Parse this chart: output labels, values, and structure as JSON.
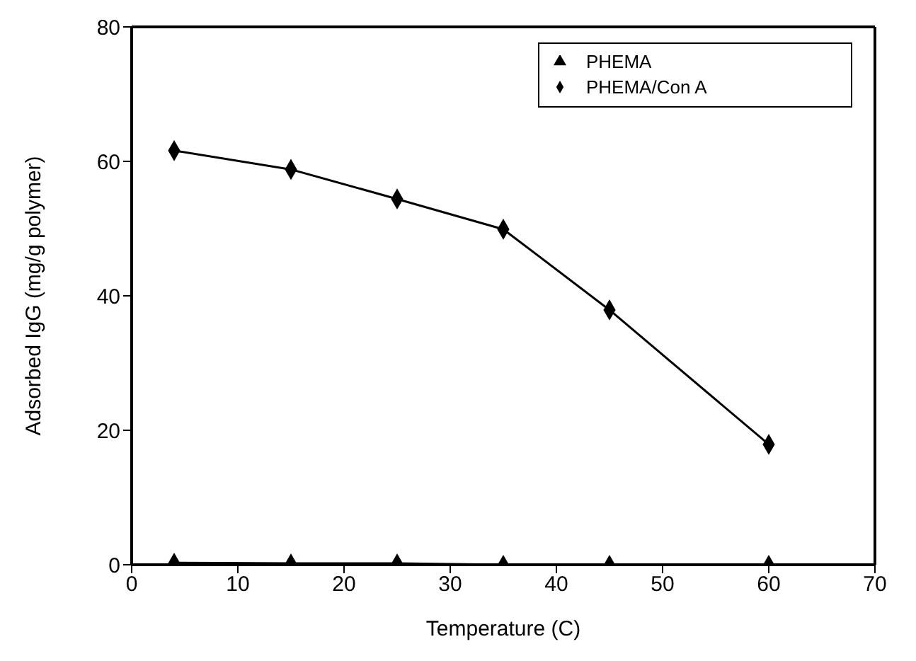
{
  "chart_data": {
    "type": "line",
    "xlabel": "Temperature (C)",
    "ylabel": "Adsorbed IgG (mg/g polymer)",
    "x": [
      4,
      15,
      25,
      35,
      45,
      60
    ],
    "series": [
      {
        "name": "PHEMA",
        "color": "#000000",
        "marker": "triangle",
        "values": [
          0.3,
          0.2,
          0.2,
          0,
          0,
          0
        ]
      },
      {
        "name": "PHEMA/Con A",
        "color": "#000000",
        "marker": "diamond",
        "values": [
          61.6,
          58.8,
          54.4,
          49.9,
          37.9,
          17.9
        ]
      }
    ],
    "xlim": [
      0,
      70
    ],
    "xticks": [
      0,
      10,
      20,
      30,
      40,
      50,
      60,
      70
    ],
    "ylim": [
      0,
      80
    ],
    "yticks": [
      0,
      20,
      40,
      60,
      80
    ],
    "grid": false,
    "legend": "top right"
  }
}
